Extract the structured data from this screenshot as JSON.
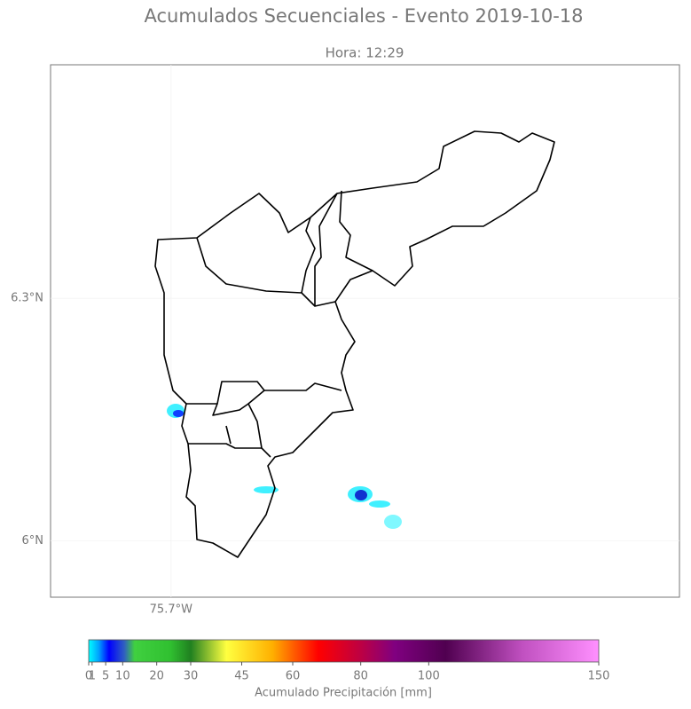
{
  "chart_data": {
    "type": "map",
    "title": "Acumulados Secuenciales - Evento 2019-10-18",
    "subtitle": "Hora: 12:29",
    "xlim": [
      -75.85,
      -75.067
    ],
    "ylim": [
      5.93,
      6.589
    ],
    "xticks": [
      {
        "value": -75.7,
        "label": "75.7°W"
      }
    ],
    "yticks": [
      {
        "value": 6.3,
        "label": "6.3°N"
      },
      {
        "value": 6.0,
        "label": "6°N"
      }
    ],
    "grid": true,
    "colorbar": {
      "label": "Acumulado Precipitación [mm]",
      "lim": [
        0,
        150
      ],
      "ticks": [
        0,
        1,
        5,
        10,
        20,
        30,
        45,
        60,
        80,
        100,
        150
      ]
    }
  }
}
